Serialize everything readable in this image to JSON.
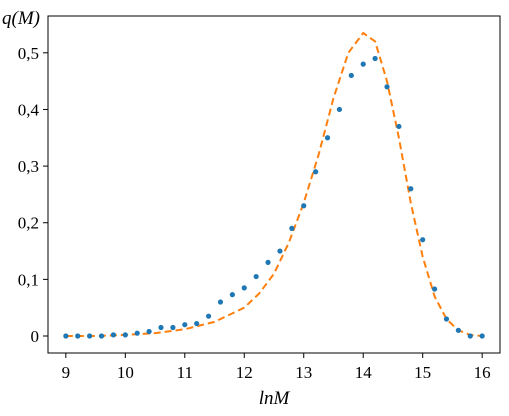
{
  "chart_data": {
    "type": "scatter",
    "title": "",
    "xlabel": "lnM",
    "ylabel": "q(M)",
    "xlim": [
      8.7,
      16.3
    ],
    "ylim": [
      -0.03,
      0.565
    ],
    "x_ticks": [
      9,
      10,
      11,
      12,
      13,
      14,
      15,
      16
    ],
    "x_tick_labels": [
      "9",
      "10",
      "11",
      "12",
      "13",
      "14",
      "15",
      "16"
    ],
    "y_ticks": [
      0,
      0.1,
      0.2,
      0.3,
      0.4,
      0.5
    ],
    "y_tick_labels": [
      "0",
      "0,1",
      "0,2",
      "0,3",
      "0,4",
      "0,5"
    ],
    "grid": false,
    "series": [
      {
        "style": "points",
        "color": "#1f77b4",
        "points": [
          [
            9.0,
            0.0
          ],
          [
            9.2,
            0.0
          ],
          [
            9.4,
            0.0
          ],
          [
            9.6,
            0.0
          ],
          [
            9.8,
            0.002
          ],
          [
            10.0,
            0.002
          ],
          [
            10.2,
            0.005
          ],
          [
            10.4,
            0.008
          ],
          [
            10.6,
            0.015
          ],
          [
            10.8,
            0.015
          ],
          [
            11.0,
            0.02
          ],
          [
            11.2,
            0.022
          ],
          [
            11.4,
            0.035
          ],
          [
            11.6,
            0.06
          ],
          [
            11.8,
            0.073
          ],
          [
            12.0,
            0.085
          ],
          [
            12.2,
            0.105
          ],
          [
            12.4,
            0.13
          ],
          [
            12.6,
            0.15
          ],
          [
            12.8,
            0.19
          ],
          [
            13.0,
            0.23
          ],
          [
            13.2,
            0.29
          ],
          [
            13.4,
            0.35
          ],
          [
            13.6,
            0.4
          ],
          [
            13.8,
            0.46
          ],
          [
            14.0,
            0.48
          ],
          [
            14.2,
            0.49
          ],
          [
            14.4,
            0.44
          ],
          [
            14.6,
            0.37
          ],
          [
            14.8,
            0.26
          ],
          [
            15.0,
            0.17
          ],
          [
            15.2,
            0.083
          ],
          [
            15.4,
            0.03
          ],
          [
            15.6,
            0.01
          ],
          [
            15.8,
            0.0
          ],
          [
            16.0,
            0.0
          ]
        ]
      },
      {
        "style": "dashed-line",
        "color": "#ff7f0e",
        "points": [
          [
            9.0,
            0.0
          ],
          [
            9.5,
            0.0
          ],
          [
            10.0,
            0.002
          ],
          [
            10.5,
            0.005
          ],
          [
            11.0,
            0.012
          ],
          [
            11.5,
            0.025
          ],
          [
            12.0,
            0.05
          ],
          [
            12.25,
            0.075
          ],
          [
            12.5,
            0.11
          ],
          [
            12.75,
            0.165
          ],
          [
            13.0,
            0.235
          ],
          [
            13.25,
            0.32
          ],
          [
            13.5,
            0.42
          ],
          [
            13.75,
            0.5
          ],
          [
            14.0,
            0.535
          ],
          [
            14.2,
            0.52
          ],
          [
            14.4,
            0.45
          ],
          [
            14.6,
            0.35
          ],
          [
            14.8,
            0.235
          ],
          [
            15.0,
            0.14
          ],
          [
            15.2,
            0.07
          ],
          [
            15.4,
            0.03
          ],
          [
            15.6,
            0.01
          ],
          [
            15.8,
            0.002
          ],
          [
            16.0,
            0.0
          ]
        ]
      }
    ]
  }
}
